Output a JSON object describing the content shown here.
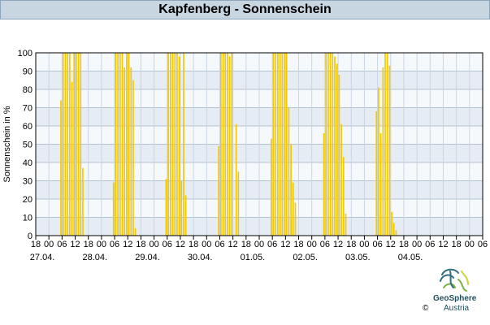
{
  "title": "Kapfenberg - Sonnenschein",
  "logo": {
    "name": "GeoSphere",
    "sub": "Austria",
    "copyright": "©",
    "colors": [
      "#2f6f7f",
      "#7bb342",
      "#c9d43a"
    ]
  },
  "chart_data": {
    "type": "bar",
    "ylabel": "Sonnenschein in %",
    "xlabel": "",
    "ylim": [
      0,
      100
    ],
    "yticks": [
      0,
      10,
      20,
      30,
      40,
      50,
      60,
      70,
      80,
      90,
      100
    ],
    "grid": true,
    "bar_color": "#f5c800",
    "band_colors": [
      "#e6ecf3",
      "#f6f9fc"
    ],
    "hour_ticks": [
      "18",
      "00",
      "06",
      "12",
      "18",
      "00",
      "06",
      "12",
      "18",
      "00",
      "06",
      "12",
      "18",
      "00",
      "06",
      "12",
      "18",
      "00",
      "06",
      "12",
      "18",
      "00",
      "06",
      "12",
      "18",
      "00",
      "06",
      "12",
      "18",
      "00",
      "06",
      "12",
      "18",
      "00",
      "06"
    ],
    "date_labels": [
      "27.04.",
      "28.04.",
      "29.04.",
      "30.04.",
      "01.05.",
      "02.05.",
      "03.05.",
      "04.05."
    ],
    "x_unit": "hour offset from 27.04. 18:00",
    "x_range": [
      0,
      204
    ],
    "x": [
      11,
      12,
      13,
      14,
      15,
      16,
      17,
      18,
      19,
      20,
      21,
      22,
      35,
      36,
      37,
      38,
      39,
      40,
      41,
      42,
      43,
      44,
      45,
      46,
      59,
      60,
      61,
      62,
      63,
      64,
      65,
      66,
      67,
      68,
      69,
      70,
      83,
      84,
      85,
      86,
      87,
      88,
      89,
      90,
      91,
      92,
      93,
      94,
      107,
      108,
      109,
      110,
      111,
      112,
      113,
      114,
      115,
      116,
      117,
      118,
      131,
      132,
      133,
      134,
      135,
      136,
      137,
      138,
      139,
      140,
      141,
      142,
      155,
      156,
      157,
      158,
      159,
      160,
      161,
      162,
      163,
      164,
      165,
      166
    ],
    "values": [
      74,
      100,
      100,
      100,
      100,
      84,
      100,
      100,
      100,
      100,
      37,
      0,
      29,
      100,
      100,
      100,
      100,
      92,
      100,
      100,
      92,
      85,
      4,
      0,
      31,
      100,
      100,
      100,
      100,
      100,
      98,
      30,
      100,
      22,
      0,
      0,
      49,
      100,
      100,
      100,
      100,
      98,
      100,
      0,
      61,
      35,
      0,
      0,
      53,
      100,
      100,
      100,
      100,
      100,
      100,
      100,
      70,
      50,
      29,
      18,
      56,
      100,
      100,
      100,
      100,
      98,
      94,
      88,
      61,
      43,
      12,
      0,
      68,
      81,
      56,
      92,
      100,
      100,
      93,
      13,
      7,
      3,
      0,
      0
    ]
  }
}
